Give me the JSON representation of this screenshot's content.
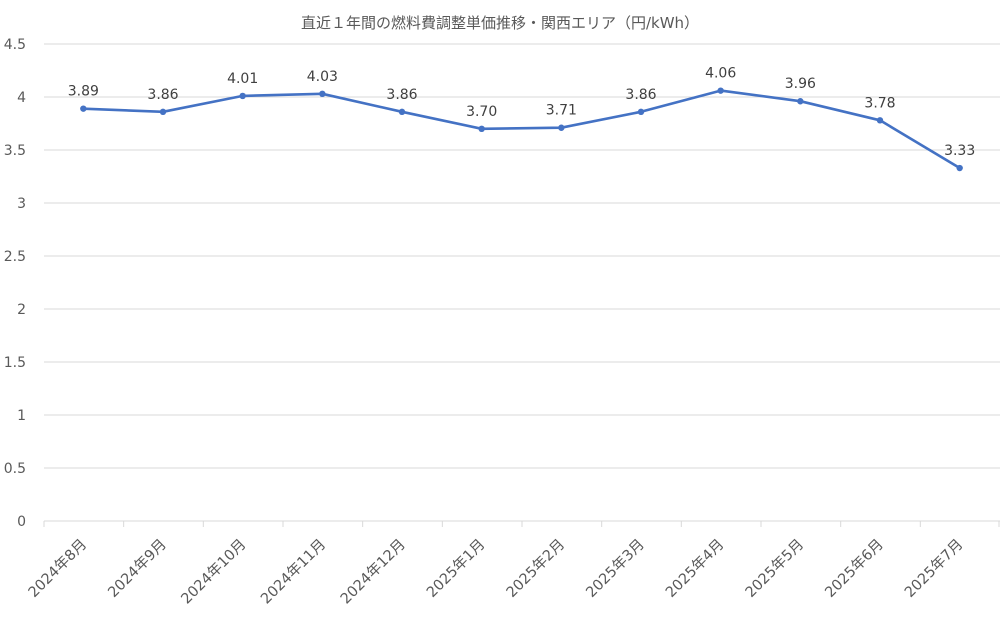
{
  "chart_data": {
    "type": "line",
    "title": "直近１年間の燃料費調整単価推移・関西エリア（円/kWh）",
    "xlabel": "",
    "ylabel": "",
    "categories": [
      "2024年8月",
      "2024年9月",
      "2024年10月",
      "2024年11月",
      "2024年12月",
      "2025年1月",
      "2025年2月",
      "2025年3月",
      "2025年4月",
      "2025年5月",
      "2025年6月",
      "2025年7月"
    ],
    "series": [
      {
        "values": [
          3.89,
          3.86,
          4.01,
          4.03,
          3.86,
          3.7,
          3.71,
          3.86,
          4.06,
          3.96,
          3.78,
          3.33
        ],
        "data_labels": [
          "3.89",
          "3.86",
          "4.01",
          "4.03",
          "3.86",
          "3.70",
          "3.71",
          "3.86",
          "4.06",
          "3.96",
          "3.78",
          "3.33"
        ],
        "color": "#4472c4"
      }
    ],
    "ylim": [
      0,
      4.5
    ],
    "yticks": [
      "0",
      "0.5",
      "1",
      "1.5",
      "2",
      "2.5",
      "3",
      "3.5",
      "4",
      "4.5"
    ],
    "grid": true,
    "legend": "none"
  }
}
